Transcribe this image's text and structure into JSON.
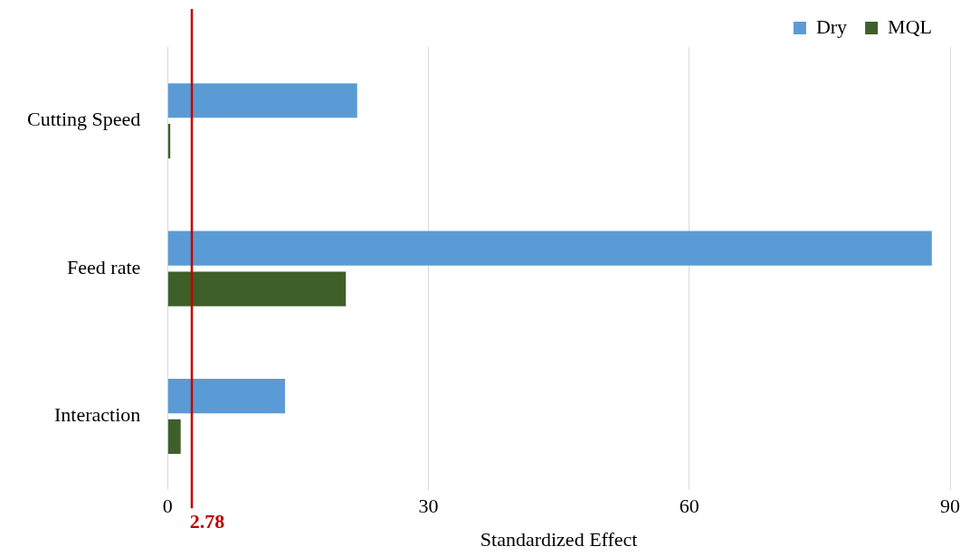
{
  "chart_data": {
    "type": "bar",
    "orientation": "horizontal",
    "xlabel": "Standardized Effect",
    "categories": [
      "Cutting Speed",
      "Feed rate",
      "Interaction"
    ],
    "series": [
      {
        "name": "Dry",
        "color": "#5b9bd5",
        "values": [
          21.8,
          87.9,
          13.5
        ]
      },
      {
        "name": "MQL",
        "color": "#3e5f2a",
        "values": [
          0.3,
          20.5,
          1.5
        ]
      }
    ],
    "xlim": [
      0,
      90
    ],
    "xticks": [
      0,
      30,
      60,
      90
    ],
    "grid": "x",
    "legend": "top right",
    "ref_lines": [
      {
        "axis": "x",
        "value": 2.78,
        "label": "2.78",
        "color": "#c00000"
      }
    ]
  }
}
